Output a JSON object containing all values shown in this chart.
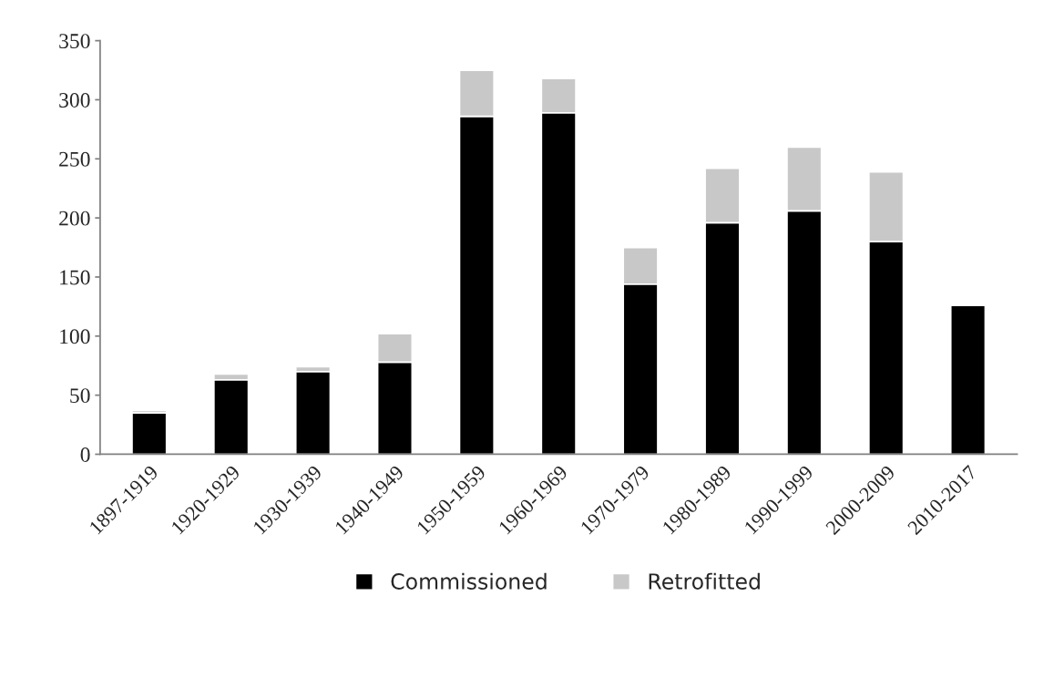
{
  "chart_data": {
    "type": "bar",
    "stacked": true,
    "categories": [
      "1897-1919",
      "1920-1929",
      "1930-1939",
      "1940-1949",
      "1950-1959",
      "1960-1969",
      "1970-1979",
      "1980-1989",
      "1990-1999",
      "2000-2009",
      "2010-2017"
    ],
    "series": [
      {
        "name": "Commissioned",
        "color": "#000000",
        "values": [
          35,
          63,
          70,
          78,
          286,
          289,
          144,
          196,
          206,
          180,
          126
        ]
      },
      {
        "name": "Retrofitted",
        "color": "#c8c8c8",
        "values": [
          2,
          5,
          4,
          24,
          39,
          29,
          31,
          46,
          54,
          59,
          null
        ]
      }
    ],
    "ylim": [
      0,
      350
    ],
    "yticks": [
      0,
      50,
      100,
      150,
      200,
      250,
      300,
      350
    ],
    "grid": false,
    "legend": "bottom"
  }
}
